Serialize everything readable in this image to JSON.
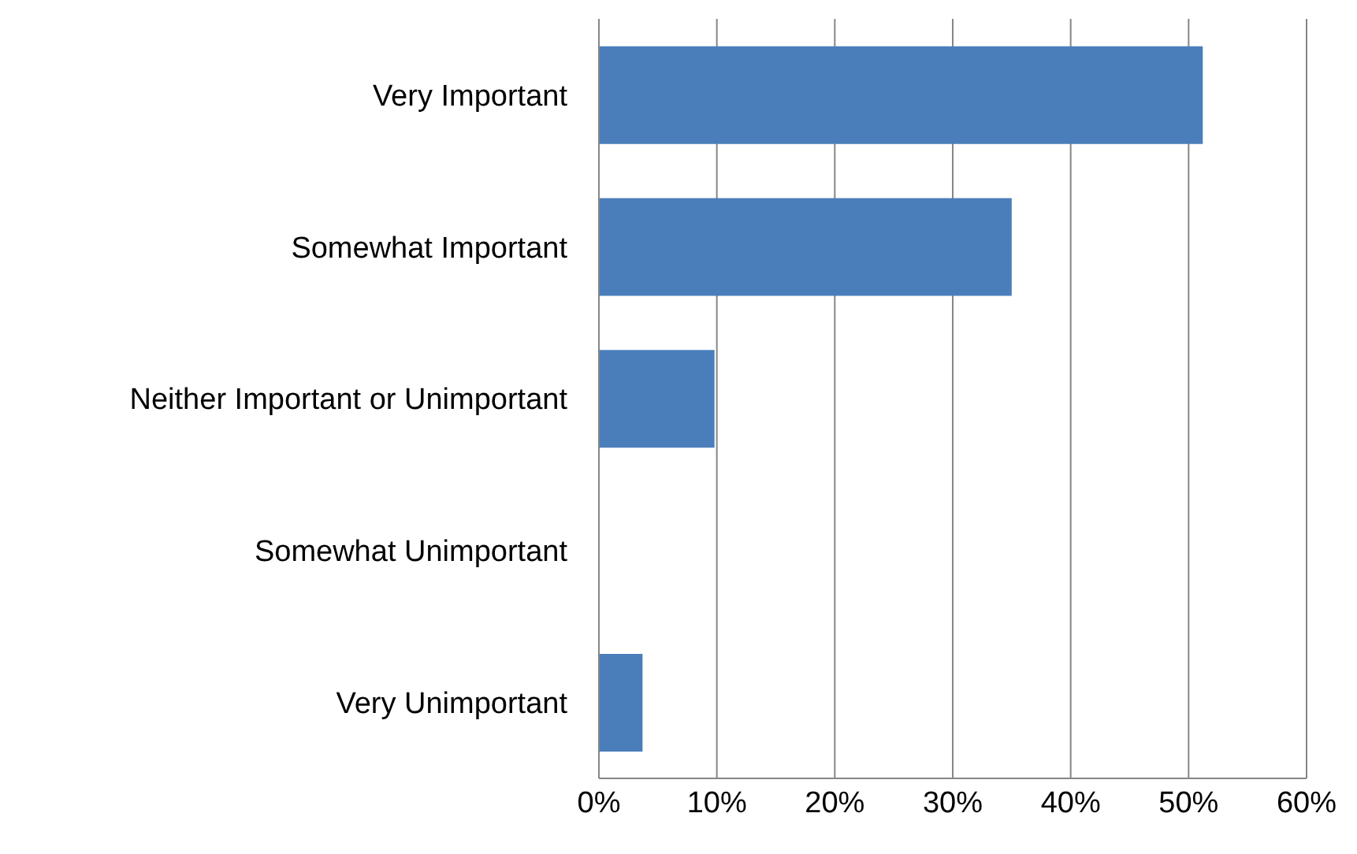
{
  "chart_data": {
    "type": "bar",
    "orientation": "horizontal",
    "categories": [
      "Very Important",
      "Somewhat Important",
      "Neither Important or Unimportant",
      "Somewhat Unimportant",
      "Very Unimportant"
    ],
    "values": [
      0.512,
      0.35,
      0.098,
      0,
      0.037
    ],
    "color": "#4a7ebb",
    "xlim": [
      0,
      0.6
    ],
    "xticks": [
      {
        "value": 0,
        "label": "0%"
      },
      {
        "value": 0.1,
        "label": "10%"
      },
      {
        "value": 0.2,
        "label": "20%"
      },
      {
        "value": 0.3,
        "label": "30%"
      },
      {
        "value": 0.4,
        "label": "40%"
      },
      {
        "value": 0.5,
        "label": "50%"
      },
      {
        "value": 0.6,
        "label": "60%"
      }
    ],
    "grid": "x",
    "legend": false
  }
}
